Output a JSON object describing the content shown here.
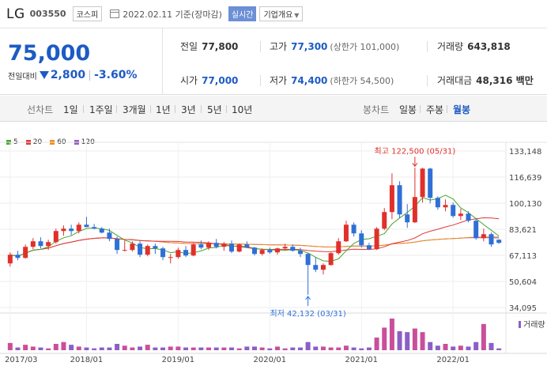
{
  "header": {
    "company": "LG",
    "code": "003550",
    "market": "코스피",
    "as_of": "2022.02.11 기준(장마감)",
    "realtime_label": "실시간",
    "company_info_label": "기업개요"
  },
  "price": {
    "current": "75,000",
    "change_label": "전일대비",
    "change": "2,800",
    "change_pct": "-3.60%"
  },
  "stats": {
    "prev_close": {
      "label": "전일",
      "value": "77,800"
    },
    "high": {
      "label": "고가",
      "value": "77,300",
      "sub": "(상한가 101,000)"
    },
    "volume": {
      "label": "거래량",
      "value": "643,818"
    },
    "open": {
      "label": "시가",
      "value": "77,000"
    },
    "low": {
      "label": "저가",
      "value": "74,400",
      "sub": "(하한가 54,500)"
    },
    "amount": {
      "label": "거래대금",
      "value": "48,316 백만"
    }
  },
  "toolbar": {
    "line_label": "선차트",
    "periods": [
      "1일",
      "1주일",
      "3개월",
      "1년",
      "3년",
      "5년",
      "10년"
    ],
    "candle_label": "봉차트",
    "candles": [
      "일봉",
      "주봉",
      "월봉"
    ],
    "active_candle": "월봉"
  },
  "colors": {
    "up": "#e0302b",
    "down": "#2f6fd6",
    "ma5": "#48a52f",
    "ma20": "#e03a3a",
    "ma60": "#f08c1e",
    "ma120": "#9a5bc6"
  },
  "chart_data": {
    "type": "candlestick",
    "period": "monthly",
    "legend": [
      "5",
      "20",
      "60",
      "120"
    ],
    "y_ticks": [
      133148,
      116639,
      100130,
      83621,
      67113,
      50604,
      34095
    ],
    "y_tick_labels": [
      "133,148",
      "116,639",
      "100,130",
      "83,621",
      "67,113",
      "50,604",
      "34,095"
    ],
    "ylim": [
      34095,
      133148
    ],
    "x_labels": [
      "2017/03",
      "2018/01",
      "2019/01",
      "2020/01",
      "2021/01",
      "2022/01"
    ],
    "high_annotation": "최고 122,500 (05/31)",
    "low_annotation": "최저 42,132 (03/31)",
    "volume_label": "거래량",
    "candles": [
      {
        "o": 62000,
        "h": 69000,
        "l": 60000,
        "c": 67500
      },
      {
        "o": 67500,
        "h": 70000,
        "l": 64000,
        "c": 65500
      },
      {
        "o": 65500,
        "h": 74000,
        "l": 65000,
        "c": 72500
      },
      {
        "o": 72500,
        "h": 78000,
        "l": 71000,
        "c": 76000
      },
      {
        "o": 76000,
        "h": 78500,
        "l": 71500,
        "c": 73000
      },
      {
        "o": 73000,
        "h": 77000,
        "l": 70500,
        "c": 75500
      },
      {
        "o": 75500,
        "h": 84000,
        "l": 74500,
        "c": 82500
      },
      {
        "o": 82500,
        "h": 86000,
        "l": 79500,
        "c": 84000
      },
      {
        "o": 84000,
        "h": 86500,
        "l": 80000,
        "c": 82500
      },
      {
        "o": 82500,
        "h": 88000,
        "l": 81000,
        "c": 86500
      },
      {
        "o": 86500,
        "h": 91500,
        "l": 85000,
        "c": 85000
      },
      {
        "o": 85000,
        "h": 87000,
        "l": 83500,
        "c": 84000
      },
      {
        "o": 84000,
        "h": 85000,
        "l": 81000,
        "c": 81500
      },
      {
        "o": 81500,
        "h": 84000,
        "l": 76000,
        "c": 77500
      },
      {
        "o": 77500,
        "h": 79000,
        "l": 68000,
        "c": 70500
      },
      {
        "o": 70500,
        "h": 76500,
        "l": 69500,
        "c": 70500
      },
      {
        "o": 70500,
        "h": 76000,
        "l": 69500,
        "c": 74500
      },
      {
        "o": 74500,
        "h": 76000,
        "l": 66000,
        "c": 67500
      },
      {
        "o": 67500,
        "h": 74000,
        "l": 66500,
        "c": 73000
      },
      {
        "o": 73000,
        "h": 74500,
        "l": 68000,
        "c": 71500
      },
      {
        "o": 71500,
        "h": 72500,
        "l": 64000,
        "c": 66000
      },
      {
        "o": 66000,
        "h": 68000,
        "l": 62000,
        "c": 66000
      },
      {
        "o": 66000,
        "h": 72000,
        "l": 65000,
        "c": 70500
      },
      {
        "o": 70500,
        "h": 73000,
        "l": 66000,
        "c": 67000
      },
      {
        "o": 67000,
        "h": 75000,
        "l": 66500,
        "c": 74000
      },
      {
        "o": 74000,
        "h": 76500,
        "l": 71000,
        "c": 72000
      },
      {
        "o": 72000,
        "h": 76000,
        "l": 70500,
        "c": 75000
      },
      {
        "o": 75000,
        "h": 77500,
        "l": 71500,
        "c": 72500
      },
      {
        "o": 72500,
        "h": 75500,
        "l": 70000,
        "c": 74500
      },
      {
        "o": 74500,
        "h": 76500,
        "l": 68500,
        "c": 69500
      },
      {
        "o": 69500,
        "h": 74500,
        "l": 69000,
        "c": 74000
      },
      {
        "o": 74000,
        "h": 76000,
        "l": 72000,
        "c": 72000
      },
      {
        "o": 72000,
        "h": 72500,
        "l": 67000,
        "c": 68000
      },
      {
        "o": 68000,
        "h": 71500,
        "l": 67000,
        "c": 70500
      },
      {
        "o": 70500,
        "h": 72000,
        "l": 68000,
        "c": 69000
      },
      {
        "o": 69000,
        "h": 72000,
        "l": 67500,
        "c": 71500
      },
      {
        "o": 71500,
        "h": 74500,
        "l": 70000,
        "c": 72500
      },
      {
        "o": 72500,
        "h": 74000,
        "l": 69500,
        "c": 70000
      },
      {
        "o": 70000,
        "h": 72000,
        "l": 66000,
        "c": 68000
      },
      {
        "o": 68000,
        "h": 68500,
        "l": 42132,
        "c": 61000
      },
      {
        "o": 61000,
        "h": 66000,
        "l": 56500,
        "c": 58000
      },
      {
        "o": 58000,
        "h": 62000,
        "l": 55000,
        "c": 61000
      },
      {
        "o": 61000,
        "h": 69000,
        "l": 60500,
        "c": 68500
      },
      {
        "o": 68500,
        "h": 78000,
        "l": 67500,
        "c": 76000
      },
      {
        "o": 76000,
        "h": 89000,
        "l": 75500,
        "c": 86500
      },
      {
        "o": 86500,
        "h": 88000,
        "l": 79000,
        "c": 81000
      },
      {
        "o": 81000,
        "h": 83000,
        "l": 72000,
        "c": 73500
      },
      {
        "o": 73500,
        "h": 75000,
        "l": 70500,
        "c": 71000
      },
      {
        "o": 71000,
        "h": 85000,
        "l": 70500,
        "c": 84000
      },
      {
        "o": 84000,
        "h": 97000,
        "l": 83000,
        "c": 94500
      },
      {
        "o": 94500,
        "h": 119000,
        "l": 90000,
        "c": 111500
      },
      {
        "o": 111500,
        "h": 114000,
        "l": 90500,
        "c": 93000
      },
      {
        "o": 93000,
        "h": 99500,
        "l": 84500,
        "c": 88000
      },
      {
        "o": 88000,
        "h": 122500,
        "l": 87500,
        "c": 104000
      },
      {
        "o": 104000,
        "h": 122500,
        "l": 100500,
        "c": 122000
      },
      {
        "o": 122000,
        "h": 122500,
        "l": 100000,
        "c": 103500
      },
      {
        "o": 103500,
        "h": 104500,
        "l": 96000,
        "c": 97500
      },
      {
        "o": 97500,
        "h": 102500,
        "l": 95000,
        "c": 99000
      },
      {
        "o": 99000,
        "h": 100500,
        "l": 91000,
        "c": 92000
      },
      {
        "o": 92000,
        "h": 96500,
        "l": 89500,
        "c": 93500
      },
      {
        "o": 93500,
        "h": 95000,
        "l": 88000,
        "c": 89000
      },
      {
        "o": 89000,
        "h": 90500,
        "l": 77000,
        "c": 78000
      },
      {
        "o": 78000,
        "h": 84000,
        "l": 76000,
        "c": 80500
      },
      {
        "o": 80500,
        "h": 81500,
        "l": 72500,
        "c": 74000
      },
      {
        "o": 77000,
        "h": 77300,
        "l": 74400,
        "c": 75000
      }
    ],
    "volumes": [
      8,
      3,
      6,
      4,
      3,
      2,
      7,
      9,
      6,
      4,
      3,
      2,
      3,
      3,
      7,
      5,
      3,
      4,
      6,
      3,
      3,
      4,
      4,
      3,
      3,
      3,
      3,
      3,
      3,
      3,
      2,
      4,
      4,
      3,
      2,
      4,
      2,
      3,
      3,
      9,
      4,
      4,
      3,
      3,
      5,
      3,
      2,
      3,
      14,
      25,
      35,
      21,
      20,
      24,
      20,
      9,
      5,
      7,
      4,
      5,
      4,
      9,
      29,
      8,
      2
    ]
  }
}
